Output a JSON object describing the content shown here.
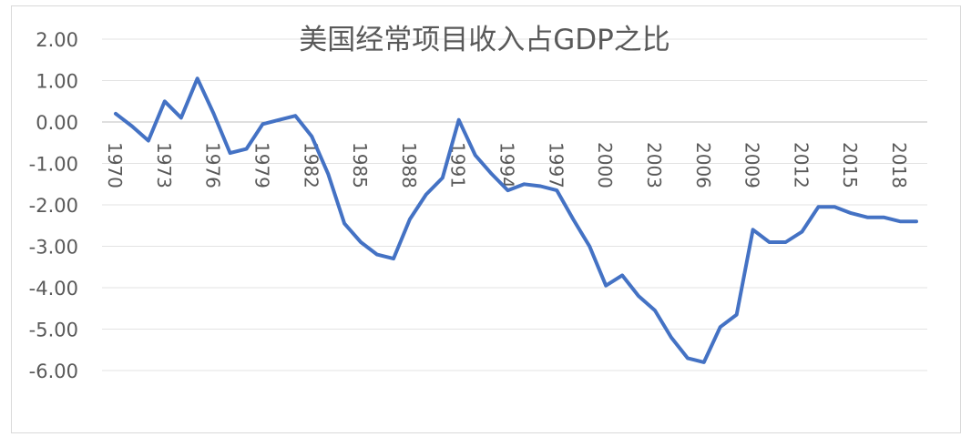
{
  "chart_data": {
    "type": "line",
    "title": "美国经常项目收入占GDP之比",
    "xlabel": "",
    "ylabel": "",
    "ylim": [
      -6,
      2
    ],
    "y_ticks": [
      "2.00",
      "1.00",
      "0.00",
      "-1.00",
      "-2.00",
      "-3.00",
      "-4.00",
      "-5.00",
      "-6.00"
    ],
    "x_tick_labels": [
      "1970",
      "1973",
      "1976",
      "1979",
      "1982",
      "1985",
      "1988",
      "1991",
      "1994",
      "1997",
      "2000",
      "2003",
      "2006",
      "2009",
      "2012",
      "2015",
      "2018"
    ],
    "grid": true,
    "legend": "none",
    "line_color": "#4472c4",
    "series": [
      {
        "x": [
          1970,
          1971,
          1972,
          1973,
          1974,
          1975,
          1976,
          1977,
          1978,
          1979,
          1980,
          1981,
          1982,
          1983,
          1984,
          1985,
          1986,
          1987,
          1988,
          1989,
          1990,
          1991,
          1992,
          1993,
          1994,
          1995,
          1996,
          1997,
          1998,
          1999,
          2000,
          2001,
          2002,
          2003,
          2004,
          2005,
          2006,
          2007,
          2008,
          2009,
          2010,
          2011,
          2012,
          2013,
          2014,
          2015,
          2016,
          2017,
          2018,
          2019
        ],
        "values": [
          0.2,
          -0.1,
          -0.45,
          0.5,
          0.1,
          1.05,
          0.2,
          -0.75,
          -0.65,
          -0.05,
          0.05,
          0.15,
          -0.35,
          -1.25,
          -2.45,
          -2.9,
          -3.2,
          -3.3,
          -2.35,
          -1.75,
          -1.35,
          0.05,
          -0.8,
          -1.25,
          -1.65,
          -1.5,
          -1.55,
          -1.65,
          -2.35,
          -3.0,
          -3.95,
          -3.7,
          -4.2,
          -4.55,
          -5.2,
          -5.7,
          -5.8,
          -4.95,
          -4.65,
          -2.6,
          -2.9,
          -2.9,
          -2.65,
          -2.05,
          -2.05,
          -2.2,
          -2.3,
          -2.3,
          -2.4,
          -2.4
        ]
      }
    ]
  }
}
